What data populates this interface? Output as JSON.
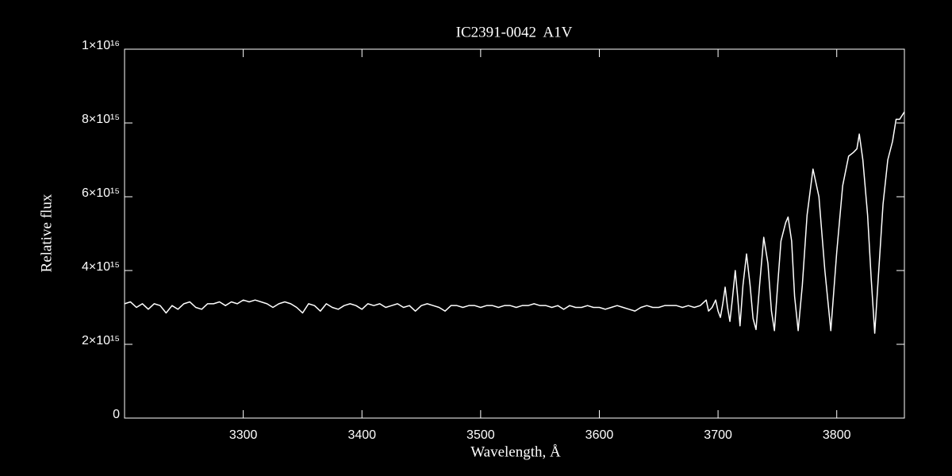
{
  "chart_data": {
    "type": "line",
    "title": "IC2391-0042  A1V",
    "xlabel": "Wavelength, Å",
    "ylabel": "Relative flux",
    "color": "#ffffff",
    "xlim": [
      3200,
      3857
    ],
    "ylim": [
      0,
      1e+16
    ],
    "xticks": [
      3300,
      3400,
      3500,
      3600,
      3700,
      3800
    ],
    "yticks": [
      0,
      {
        "value": 2000000000000000.0,
        "label": "2×10¹⁵"
      },
      {
        "value": 4000000000000000.0,
        "label": "4×10¹⁵"
      },
      {
        "value": 6000000000000000.0,
        "label": "6×10¹⁵"
      },
      {
        "value": 8000000000000000.0,
        "label": "8×10¹⁵"
      },
      {
        "value": 1e+16,
        "label": "1×10¹⁶"
      }
    ],
    "x": [
      3200,
      3205,
      3210,
      3215,
      3220,
      3225,
      3230,
      3235,
      3240,
      3245,
      3250,
      3255,
      3260,
      3265,
      3270,
      3275,
      3280,
      3285,
      3290,
      3295,
      3300,
      3305,
      3310,
      3315,
      3320,
      3325,
      3330,
      3335,
      3340,
      3345,
      3350,
      3355,
      3360,
      3365,
      3370,
      3375,
      3380,
      3385,
      3390,
      3395,
      3400,
      3405,
      3410,
      3415,
      3420,
      3425,
      3430,
      3435,
      3440,
      3445,
      3450,
      3455,
      3460,
      3465,
      3470,
      3475,
      3480,
      3485,
      3490,
      3495,
      3500,
      3505,
      3510,
      3515,
      3520,
      3525,
      3530,
      3535,
      3540,
      3545,
      3550,
      3555,
      3560,
      3565,
      3570,
      3575,
      3580,
      3585,
      3590,
      3595,
      3600,
      3605,
      3610,
      3615,
      3620,
      3625,
      3630,
      3635,
      3640,
      3645,
      3650,
      3655,
      3660,
      3665,
      3670,
      3675,
      3680,
      3685,
      3690,
      3692,
      3695,
      3698,
      3700,
      3702,
      3704,
      3706,
      3708,
      3710,
      3712,
      3714.5,
      3716.5,
      3718.5,
      3721,
      3724,
      3727,
      3729.5,
      3732,
      3735,
      3738.5,
      3742,
      3745,
      3747.5,
      3750,
      3753,
      3757,
      3759,
      3762,
      3764.5,
      3767.5,
      3771,
      3775,
      3780,
      3785,
      3790,
      3795,
      3800,
      3805,
      3810,
      3814,
      3817,
      3819,
      3822,
      3826,
      3829,
      3832,
      3835,
      3839,
      3843,
      3847,
      3850,
      3853,
      3857
    ],
    "values": [
      3100000000000000.0,
      3150000000000000.0,
      3000000000000000.0,
      3100000000000000.0,
      2950000000000000.0,
      3100000000000000.0,
      3050000000000000.0,
      2850000000000000.0,
      3050000000000000.0,
      2950000000000000.0,
      3100000000000000.0,
      3150000000000000.0,
      3000000000000000.0,
      2950000000000000.0,
      3100000000000000.0,
      3100000000000000.0,
      3150000000000000.0,
      3050000000000000.0,
      3150000000000000.0,
      3100000000000000.0,
      3200000000000000.0,
      3150000000000000.0,
      3200000000000000.0,
      3150000000000000.0,
      3100000000000000.0,
      3000000000000000.0,
      3100000000000000.0,
      3150000000000000.0,
      3100000000000000.0,
      3000000000000000.0,
      2850000000000000.0,
      3100000000000000.0,
      3050000000000000.0,
      2900000000000000.0,
      3100000000000000.0,
      3000000000000000.0,
      2950000000000000.0,
      3050000000000000.0,
      3100000000000000.0,
      3050000000000000.0,
      2950000000000000.0,
      3100000000000000.0,
      3050000000000000.0,
      3100000000000000.0,
      3000000000000000.0,
      3050000000000000.0,
      3100000000000000.0,
      3000000000000000.0,
      3050000000000000.0,
      2900000000000000.0,
      3050000000000000.0,
      3100000000000000.0,
      3050000000000000.0,
      3000000000000000.0,
      2900000000000000.0,
      3050000000000000.0,
      3050000000000000.0,
      3000000000000000.0,
      3050000000000000.0,
      3050000000000000.0,
      3000000000000000.0,
      3050000000000000.0,
      3050000000000000.0,
      3000000000000000.0,
      3050000000000000.0,
      3050000000000000.0,
      3000000000000000.0,
      3050000000000000.0,
      3050000000000000.0,
      3100000000000000.0,
      3050000000000000.0,
      3050000000000000.0,
      3000000000000000.0,
      3050000000000000.0,
      2950000000000000.0,
      3050000000000000.0,
      3000000000000000.0,
      3000000000000000.0,
      3050000000000000.0,
      3000000000000000.0,
      3000000000000000.0,
      2950000000000000.0,
      3000000000000000.0,
      3050000000000000.0,
      3000000000000000.0,
      2950000000000000.0,
      2900000000000000.0,
      3000000000000000.0,
      3050000000000000.0,
      3000000000000000.0,
      3000000000000000.0,
      3050000000000000.0,
      3050000000000000.0,
      3050000000000000.0,
      3000000000000000.0,
      3050000000000000.0,
      3000000000000000.0,
      3050000000000000.0,
      3200000000000000.0,
      2900000000000000.0,
      3000000000000000.0,
      3200000000000000.0,
      2900000000000000.0,
      2730000000000000.0,
      3100000000000000.0,
      3550000000000000.0,
      3000000000000000.0,
      2620000000000000.0,
      3200000000000000.0,
      4000000000000000.0,
      3300000000000000.0,
      2500000000000000.0,
      3600000000000000.0,
      4450000000000000.0,
      3600000000000000.0,
      2700000000000000.0,
      2400000000000000.0,
      3600000000000000.0,
      4900000000000000.0,
      4200000000000000.0,
      2900000000000000.0,
      2370000000000000.0,
      3500000000000000.0,
      4800000000000000.0,
      5300000000000000.0,
      5450000000000000.0,
      4800000000000000.0,
      3300000000000000.0,
      2370000000000000.0,
      3600000000000000.0,
      5500000000000000.0,
      6750000000000000.0,
      6000000000000000.0,
      4000000000000000.0,
      2370000000000000.0,
      4500000000000000.0,
      6300000000000000.0,
      7100000000000000.0,
      7200000000000000.0,
      7300000000000000.0,
      7700000000000000.0,
      7000000000000000.0,
      5500000000000000.0,
      3800000000000000.0,
      2300000000000000.0,
      3800000000000000.0,
      5800000000000000.0,
      7000000000000000.0,
      7500000000000000.0,
      8100000000000000.0,
      8100000000000000.0,
      8300000000000000.0
    ]
  }
}
